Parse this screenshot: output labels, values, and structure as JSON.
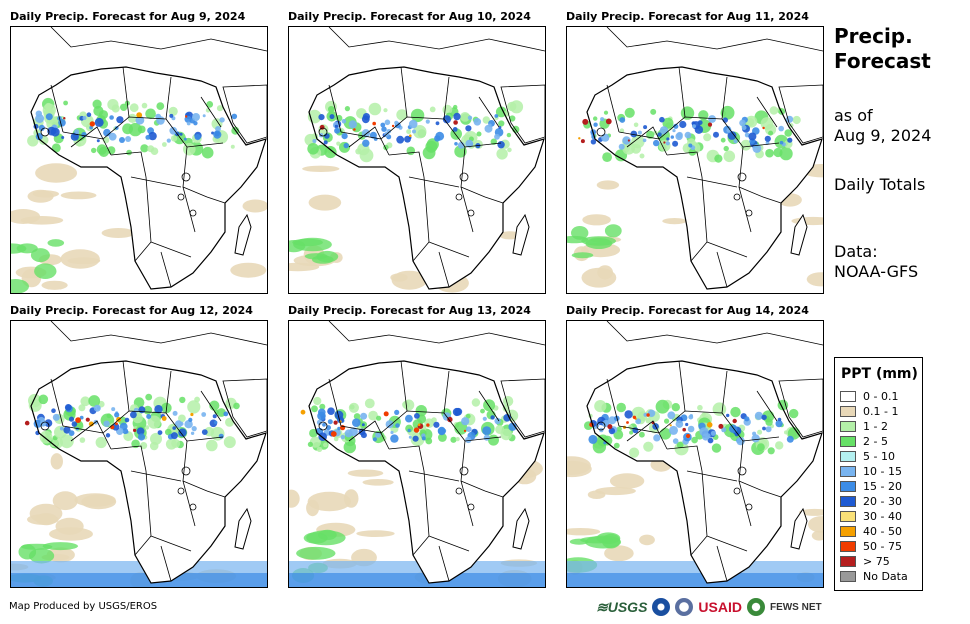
{
  "panels": [
    {
      "title": "Daily Precip. Forecast for Aug 9, 2024"
    },
    {
      "title": "Daily Precip. Forecast for Aug 10, 2024"
    },
    {
      "title": "Daily Precip. Forecast for Aug 11, 2024"
    },
    {
      "title": "Daily Precip. Forecast for Aug 12, 2024"
    },
    {
      "title": "Daily Precip. Forecast for Aug 13, 2024"
    },
    {
      "title": "Daily Precip. Forecast for Aug 14, 2024"
    }
  ],
  "side": {
    "title_line1": "Precip.",
    "title_line2": "Forecast",
    "asof_line1": "as of",
    "asof_line2": "Aug 9, 2024",
    "totals": "Daily Totals",
    "data_line1": "Data:",
    "data_line2": "NOAA-GFS"
  },
  "legend": {
    "title": "PPT (mm)",
    "items": [
      {
        "label": "0 - 0.1",
        "color": "#ffffff"
      },
      {
        "label": "0.1 - 1",
        "color": "#e8d8b8"
      },
      {
        "label": "1 - 2",
        "color": "#b4f0a8"
      },
      {
        "label": "2 - 5",
        "color": "#66e066"
      },
      {
        "label": "5 - 10",
        "color": "#b4f0f0"
      },
      {
        "label": "10 - 15",
        "color": "#78b4f0"
      },
      {
        "label": "15 - 20",
        "color": "#3c8ce6"
      },
      {
        "label": "20 - 30",
        "color": "#1e5ad2"
      },
      {
        "label": "30 - 40",
        "color": "#fae178"
      },
      {
        "label": "40 - 50",
        "color": "#f5a000"
      },
      {
        "label": "50 - 75",
        "color": "#f03c00"
      },
      {
        "label": "> 75",
        "color": "#b41e1e"
      },
      {
        "label": "No Data",
        "color": "#999999"
      }
    ]
  },
  "footer": {
    "credit": "Map Produced by USGS/EROS",
    "logo_usgs": "≋USGS",
    "logo_usaid": "USAID",
    "logo_fews": "FEWS NET"
  }
}
